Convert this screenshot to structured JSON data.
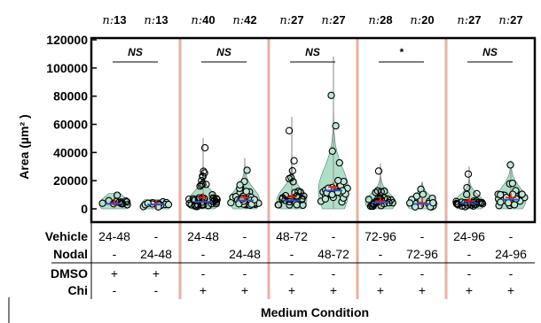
{
  "chart_data": {
    "type": "violin",
    "ylabel": "Area (µm² )",
    "ylim": [
      0,
      120000
    ],
    "yticks": [
      "0",
      "20000",
      "40000",
      "60000",
      "80000",
      "100000",
      "120000"
    ],
    "xlabel": "Medium Condition",
    "n_prefix": "n:",
    "groups": [
      {
        "significance": "NS",
        "conditions": [
          {
            "n": "13",
            "vehicle": "24-48",
            "nodal": "-",
            "dmso": "+",
            "chi": "-",
            "mean": 4000,
            "median": 3500,
            "max": 11000,
            "seed": 1
          },
          {
            "n": "13",
            "vehicle": "-",
            "nodal": "24-48",
            "dmso": "+",
            "chi": "-",
            "mean": 3200,
            "median": 3000,
            "max": 6500,
            "seed": 2
          }
        ]
      },
      {
        "significance": "NS",
        "conditions": [
          {
            "n": "40",
            "vehicle": "24-48",
            "nodal": "-",
            "dmso": "-",
            "chi": "+",
            "mean": 8000,
            "median": 5000,
            "max": 50000,
            "seed": 3
          },
          {
            "n": "42",
            "vehicle": "-",
            "nodal": "24-48",
            "dmso": "-",
            "chi": "+",
            "mean": 7800,
            "median": 6000,
            "max": 36000,
            "seed": 4
          }
        ]
      },
      {
        "significance": "NS",
        "conditions": [
          {
            "n": "27",
            "vehicle": "48-72",
            "nodal": "-",
            "dmso": "-",
            "chi": "+",
            "mean": 8500,
            "median": 6000,
            "max": 65000,
            "seed": 5
          },
          {
            "n": "27",
            "vehicle": "-",
            "nodal": "48-72",
            "dmso": "-",
            "chi": "+",
            "mean": 15500,
            "median": 13000,
            "max": 108000,
            "seed": 6
          }
        ]
      },
      {
        "significance": "*",
        "conditions": [
          {
            "n": "28",
            "vehicle": "72-96",
            "nodal": "-",
            "dmso": "-",
            "chi": "+",
            "mean": 5500,
            "median": 4500,
            "max": 32000,
            "seed": 7
          },
          {
            "n": "20",
            "vehicle": "-",
            "nodal": "72-96",
            "dmso": "-",
            "chi": "+",
            "mean": 4200,
            "median": 3500,
            "max": 19000,
            "seed": 8
          }
        ]
      },
      {
        "significance": "NS",
        "conditions": [
          {
            "n": "27",
            "vehicle": "24-96",
            "nodal": "-",
            "dmso": "-",
            "chi": "+",
            "mean": 5500,
            "median": 4000,
            "max": 30000,
            "seed": 9
          },
          {
            "n": "27",
            "vehicle": "-",
            "nodal": "24-96",
            "dmso": "-",
            "chi": "+",
            "mean": 8000,
            "median": 6500,
            "max": 34000,
            "seed": 10
          }
        ]
      }
    ],
    "table_rows": [
      {
        "key": "vehicle",
        "label": "Vehicle"
      },
      {
        "key": "nodal",
        "label": "Nodal"
      },
      {
        "key": "dmso",
        "label": "DMSO"
      },
      {
        "key": "chi",
        "label": "Chi"
      }
    ],
    "colors": {
      "violin_fill": "#a8dcc4",
      "violin_stroke": "#3a6e5c",
      "whisker": "#9a9a9a",
      "point_fill": "#bfe6d4",
      "point_stroke": "#000000",
      "mean_marker": "#e0201a",
      "median_marker": "#2a52c8",
      "group_divider": "#e8b0a0"
    }
  }
}
